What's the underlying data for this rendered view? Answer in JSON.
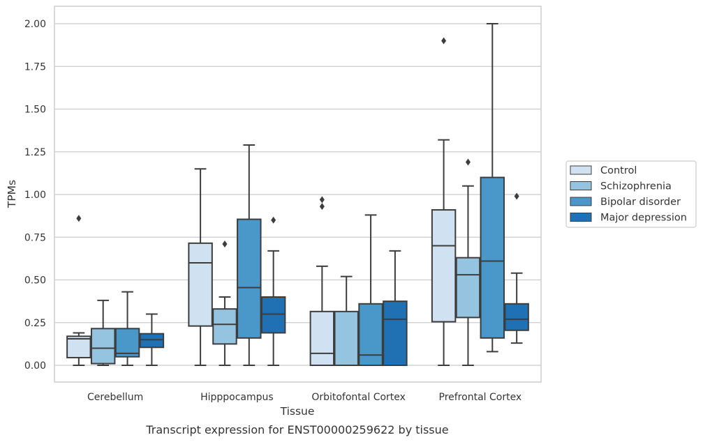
{
  "caption": "Transcript expression for ENST00000259622 by tissue",
  "chart_data": {
    "type": "box",
    "title": "",
    "xlabel": "Tissue",
    "ylabel": "TPMs",
    "ylim": [
      -0.1,
      2.1
    ],
    "yticks": [
      "0.00",
      "0.25",
      "0.50",
      "0.75",
      "1.00",
      "1.25",
      "1.50",
      "1.75",
      "2.00"
    ],
    "grid": true,
    "legend_position": "right",
    "categories": [
      "Cerebellum",
      "Hipppocampus",
      "Orbitofontal Cortex",
      "Prefrontal Cortex"
    ],
    "series": [
      {
        "name": "Control",
        "color": "#d0e1f2",
        "boxes": [
          {
            "whislo": 0.0,
            "q1": 0.045,
            "med": 0.155,
            "q3": 0.17,
            "whishi": 0.19,
            "fliers": [
              0.86
            ]
          },
          {
            "whislo": 0.0,
            "q1": 0.23,
            "med": 0.6,
            "q3": 0.715,
            "whishi": 1.15,
            "fliers": []
          },
          {
            "whislo": 0.0,
            "q1": 0.0,
            "med": 0.07,
            "q3": 0.315,
            "whishi": 0.58,
            "fliers": [
              0.93,
              0.97
            ]
          },
          {
            "whislo": 0.0,
            "q1": 0.255,
            "med": 0.7,
            "q3": 0.91,
            "whishi": 1.32,
            "fliers": [
              1.9
            ]
          }
        ]
      },
      {
        "name": "Schizophrenia",
        "color": "#94c4df",
        "boxes": [
          {
            "whislo": 0.0,
            "q1": 0.01,
            "med": 0.1,
            "q3": 0.215,
            "whishi": 0.38,
            "fliers": []
          },
          {
            "whislo": 0.0,
            "q1": 0.125,
            "med": 0.24,
            "q3": 0.33,
            "whishi": 0.4,
            "fliers": [
              0.71
            ]
          },
          {
            "whislo": 0.0,
            "q1": 0.0,
            "med": 0.0,
            "q3": 0.315,
            "whishi": 0.52,
            "fliers": []
          },
          {
            "whislo": 0.0,
            "q1": 0.28,
            "med": 0.53,
            "q3": 0.63,
            "whishi": 1.05,
            "fliers": [
              1.19
            ]
          }
        ]
      },
      {
        "name": "Bipolar disorder",
        "color": "#4a98c9",
        "boxes": [
          {
            "whislo": 0.0,
            "q1": 0.05,
            "med": 0.07,
            "q3": 0.215,
            "whishi": 0.43,
            "fliers": []
          },
          {
            "whislo": 0.0,
            "q1": 0.16,
            "med": 0.455,
            "q3": 0.855,
            "whishi": 1.29,
            "fliers": []
          },
          {
            "whislo": 0.0,
            "q1": 0.0,
            "med": 0.06,
            "q3": 0.36,
            "whishi": 0.88,
            "fliers": []
          },
          {
            "whislo": 0.08,
            "q1": 0.16,
            "med": 0.61,
            "q3": 1.1,
            "whishi": 2.0,
            "fliers": []
          }
        ]
      },
      {
        "name": "Major depression",
        "color": "#2070b4",
        "boxes": [
          {
            "whislo": 0.0,
            "q1": 0.105,
            "med": 0.15,
            "q3": 0.185,
            "whishi": 0.3,
            "fliers": []
          },
          {
            "whislo": 0.0,
            "q1": 0.19,
            "med": 0.3,
            "q3": 0.4,
            "whishi": 0.67,
            "fliers": [
              0.85
            ]
          },
          {
            "whislo": 0.0,
            "q1": 0.0,
            "med": 0.27,
            "q3": 0.375,
            "whishi": 0.67,
            "fliers": []
          },
          {
            "whislo": 0.13,
            "q1": 0.205,
            "med": 0.27,
            "q3": 0.36,
            "whishi": 0.54,
            "fliers": [
              0.99
            ]
          }
        ]
      }
    ]
  }
}
